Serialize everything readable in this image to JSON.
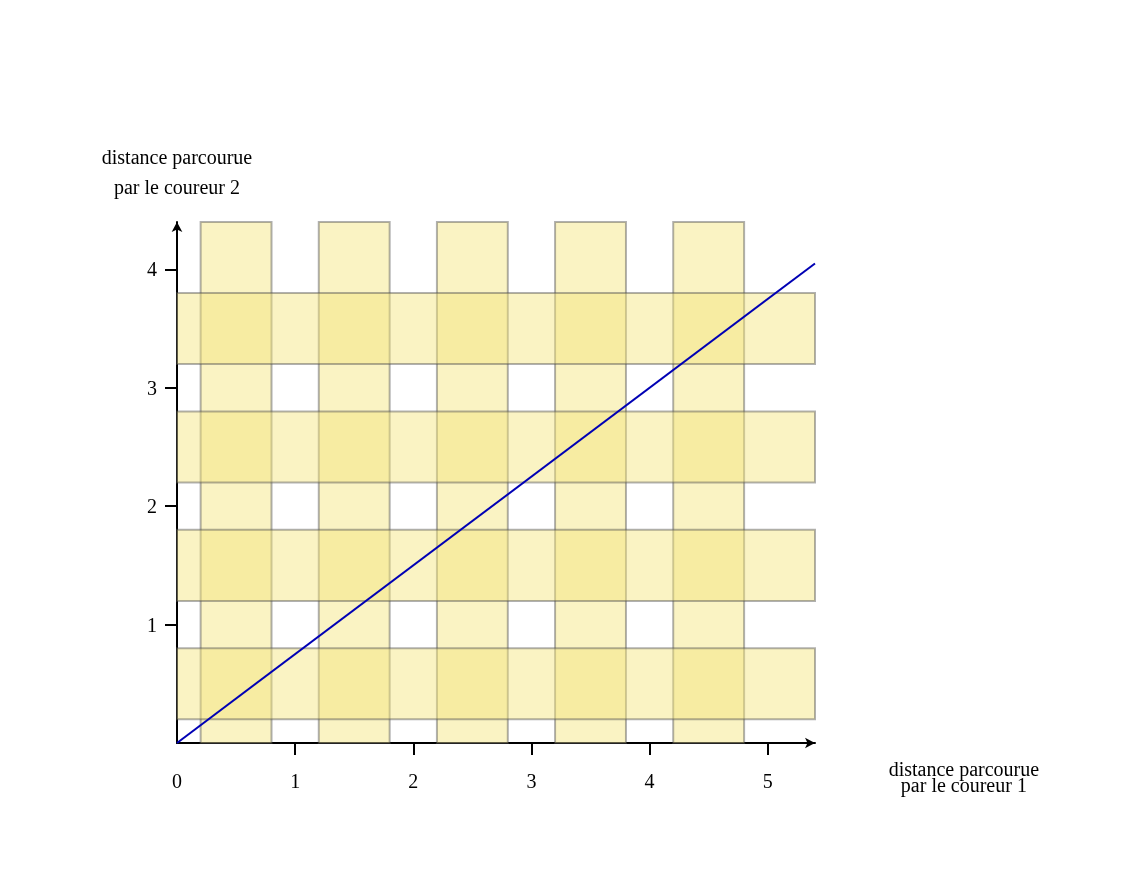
{
  "chart_data": {
    "type": "line",
    "xlabel": "distance parcourue par le coureur 1",
    "ylabel": "distance parcourue par le coureur 2",
    "x": [
      0,
      5.4
    ],
    "series": [
      {
        "color": "#0000b4",
        "values": [
          0,
          4.05
        ]
      }
    ],
    "xlim": [
      0,
      5.4
    ],
    "ylim": [
      0,
      4.4
    ],
    "xticks": [
      0,
      1,
      2,
      3,
      4,
      5
    ],
    "yticks": [
      1,
      2,
      3,
      4
    ],
    "bands": [
      {
        "axis": "x",
        "from": 0.2,
        "to": 0.8,
        "color": "#f3e57a"
      },
      {
        "axis": "x",
        "from": 1.2,
        "to": 1.8,
        "color": "#f3e57a"
      },
      {
        "axis": "x",
        "from": 2.2,
        "to": 2.8,
        "color": "#f3e57a"
      },
      {
        "axis": "x",
        "from": 3.2,
        "to": 3.8,
        "color": "#f3e57a"
      },
      {
        "axis": "x",
        "from": 4.2,
        "to": 4.8,
        "color": "#f3e57a"
      },
      {
        "axis": "y",
        "from": 0.2,
        "to": 0.8,
        "color": "#f3e57a"
      },
      {
        "axis": "y",
        "from": 1.2,
        "to": 1.8,
        "color": "#f3e57a"
      },
      {
        "axis": "y",
        "from": 2.2,
        "to": 2.8,
        "color": "#f3e57a"
      },
      {
        "axis": "y",
        "from": 3.2,
        "to": 3.8,
        "color": "#f3e57a"
      }
    ],
    "grid": false,
    "marker": "none",
    "line_style": "solid"
  }
}
